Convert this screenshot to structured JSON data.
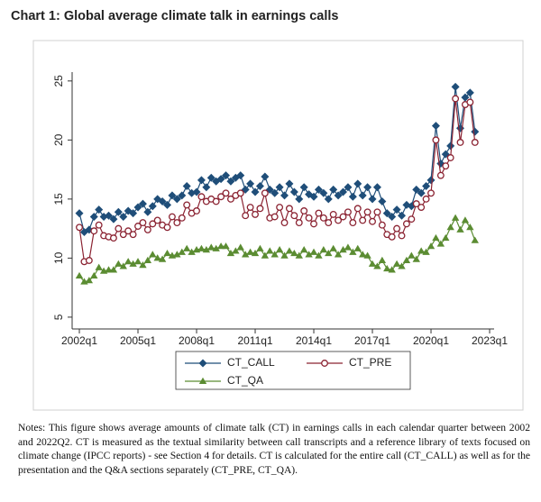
{
  "chart_data": {
    "type": "line",
    "title": "Chart 1: Global average climate talk in earnings calls",
    "notes": "Notes: This figure shows average amounts of climate talk (CT) in earnings calls in each calendar quarter between 2002 and 2022Q2. CT is measured as the textual similarity between call transcripts and a reference library of texts focused on climate change (IPCC reports) - see Section 4 for details. CT is calculated for the entire call (CT_CALL) as well as for the presentation and the Q&A sections separately (CT_PRE, CT_QA).",
    "x": [
      2002,
      2002.25,
      2002.5,
      2002.75,
      2003,
      2003.25,
      2003.5,
      2003.75,
      2004,
      2004.25,
      2004.5,
      2004.75,
      2005,
      2005.25,
      2005.5,
      2005.75,
      2006,
      2006.25,
      2006.5,
      2006.75,
      2007,
      2007.25,
      2007.5,
      2007.75,
      2008,
      2008.25,
      2008.5,
      2008.75,
      2009,
      2009.25,
      2009.5,
      2009.75,
      2010,
      2010.25,
      2010.5,
      2010.75,
      2011,
      2011.25,
      2011.5,
      2011.75,
      2012,
      2012.25,
      2012.5,
      2012.75,
      2013,
      2013.25,
      2013.5,
      2013.75,
      2014,
      2014.25,
      2014.5,
      2014.75,
      2015,
      2015.25,
      2015.5,
      2015.75,
      2016,
      2016.25,
      2016.5,
      2016.75,
      2017,
      2017.25,
      2017.5,
      2017.75,
      2018,
      2018.25,
      2018.5,
      2018.75,
      2019,
      2019.25,
      2019.5,
      2019.75,
      2020,
      2020.25,
      2020.5,
      2020.75,
      2021,
      2021.25,
      2021.5,
      2021.75,
      2022,
      2022.25
    ],
    "series": [
      {
        "name": "CT_CALL",
        "color": "#1f4e79",
        "marker": "diamond",
        "values": [
          13.8,
          12.2,
          12.4,
          13.5,
          14.1,
          13.5,
          13.6,
          13.3,
          13.9,
          13.5,
          14.0,
          13.8,
          14.3,
          14.6,
          13.9,
          14.4,
          15.0,
          14.8,
          14.5,
          15.3,
          15.0,
          15.3,
          16.1,
          15.5,
          15.6,
          16.6,
          16.0,
          16.8,
          16.5,
          16.7,
          17.0,
          16.5,
          16.8,
          17.0,
          15.8,
          16.3,
          15.6,
          16.1,
          16.9,
          15.8,
          15.5,
          16.0,
          15.3,
          16.3,
          15.6,
          15.0,
          16.0,
          15.4,
          15.2,
          15.8,
          15.5,
          15.0,
          15.8,
          15.3,
          15.6,
          16.0,
          15.2,
          16.3,
          15.3,
          16.0,
          15.0,
          16.0,
          14.8,
          13.8,
          13.5,
          14.1,
          13.6,
          14.5,
          14.4,
          15.8,
          15.5,
          16.1,
          16.6,
          21.2,
          18.0,
          18.8,
          19.5,
          24.5,
          21.0,
          23.6,
          24.0,
          20.7
        ]
      },
      {
        "name": "CT_PRE",
        "color": "#8b2332",
        "marker": "circle",
        "values": [
          12.6,
          9.7,
          9.8,
          12.3,
          12.8,
          11.9,
          11.8,
          11.7,
          12.5,
          12.0,
          12.3,
          12.0,
          12.7,
          13.0,
          12.4,
          12.9,
          13.2,
          12.8,
          12.6,
          13.5,
          13.0,
          13.4,
          14.5,
          13.8,
          14.0,
          15.2,
          14.8,
          15.0,
          14.8,
          15.2,
          15.5,
          15.0,
          15.3,
          15.5,
          13.6,
          14.3,
          13.7,
          14.2,
          15.5,
          13.4,
          13.5,
          14.3,
          13.0,
          14.2,
          13.6,
          13.0,
          14.0,
          13.4,
          12.9,
          13.8,
          13.4,
          13.0,
          13.7,
          13.2,
          13.5,
          13.9,
          13.0,
          14.2,
          13.2,
          13.9,
          13.1,
          13.9,
          12.8,
          12.0,
          11.8,
          12.5,
          11.9,
          12.9,
          13.3,
          14.6,
          14.3,
          15.0,
          15.5,
          20.0,
          17.0,
          17.8,
          18.5,
          23.5,
          19.8,
          23.0,
          23.2,
          19.8
        ]
      },
      {
        "name": "CT_QA",
        "color": "#5b8c32",
        "marker": "triangle",
        "values": [
          8.5,
          8.0,
          8.1,
          8.5,
          9.2,
          8.9,
          9.0,
          9.0,
          9.5,
          9.3,
          9.7,
          9.5,
          9.7,
          9.4,
          9.8,
          10.3,
          10.0,
          9.9,
          10.4,
          10.2,
          10.3,
          10.5,
          10.8,
          10.5,
          10.7,
          10.8,
          10.7,
          10.9,
          10.8,
          11.0,
          11.0,
          10.4,
          10.6,
          10.9,
          10.3,
          10.5,
          10.4,
          10.8,
          10.2,
          10.6,
          10.3,
          10.7,
          10.2,
          10.6,
          10.4,
          10.2,
          10.7,
          10.3,
          10.5,
          10.2,
          10.7,
          10.4,
          10.8,
          10.3,
          10.7,
          10.9,
          10.5,
          10.8,
          10.3,
          10.2,
          9.5,
          9.3,
          9.8,
          9.1,
          9.0,
          9.5,
          9.3,
          9.8,
          10.2,
          9.9,
          10.6,
          10.5,
          11.0,
          11.7,
          11.2,
          11.7,
          12.6,
          13.4,
          12.4,
          13.2,
          12.6,
          11.5
        ]
      }
    ],
    "xlim": [
      2001.63,
      2023.23
    ],
    "xticks": [
      {
        "value": 2002,
        "label": "2002q1"
      },
      {
        "value": 2005,
        "label": "2005q1"
      },
      {
        "value": 2008,
        "label": "2008q1"
      },
      {
        "value": 2011,
        "label": "2011q1"
      },
      {
        "value": 2014,
        "label": "2014q1"
      },
      {
        "value": 2017,
        "label": "2017q1"
      },
      {
        "value": 2020,
        "label": "2020q1"
      },
      {
        "value": 2023,
        "label": "2023q1"
      }
    ],
    "ylim": [
      4,
      25.75
    ],
    "yticks": [
      5,
      10,
      15,
      20,
      25
    ],
    "grid": false
  }
}
